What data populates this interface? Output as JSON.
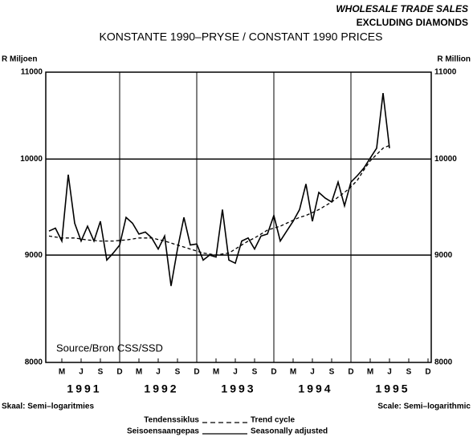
{
  "chart_data": {
    "type": "line",
    "title": "WHOLESALE TRADE SALES",
    "subtitle": "EXCLUDING DIAMONDS",
    "subtitle2": "KONSTANTE 1990–PRYSE / CONSTANT 1990 PRICES",
    "y_label_left": "R Miljoen",
    "y_label_right": "R Million",
    "source": "Source/Bron  CSS/SSD",
    "scale_note_af": "Skaal: Semi–logaritmies",
    "scale_note_en": "Scale: Semi–logarithmic",
    "log_scale": true,
    "ylim": [
      8000,
      11000
    ],
    "yticks": [
      8000,
      9000,
      10000,
      11000
    ],
    "grid": true,
    "categories": [
      null,
      null,
      "M",
      null,
      null,
      "J",
      null,
      null,
      "S",
      null,
      null,
      "D",
      null,
      null,
      "M",
      null,
      null,
      "J",
      null,
      null,
      "S",
      null,
      null,
      "D",
      null,
      null,
      "M",
      null,
      null,
      "J",
      null,
      null,
      "S",
      null,
      null,
      "D",
      null,
      null,
      "M",
      null,
      null,
      "J",
      null,
      null,
      "S",
      null,
      null,
      "D",
      null,
      null,
      "M",
      null,
      null,
      "J",
      null,
      null,
      "S",
      null,
      null,
      "D"
    ],
    "years": [
      "1991",
      "1992",
      "1993",
      "1994",
      "1995"
    ],
    "series": [
      {
        "name": "Seasonally adjusted",
        "name_af": "Seisoensaangepas",
        "color": "#000000",
        "dash": false,
        "values": [
          9240,
          9270,
          9140,
          9830,
          9320,
          9140,
          9290,
          9140,
          9340,
          8950,
          9020,
          9100,
          9380,
          9320,
          9210,
          9230,
          9170,
          9060,
          9190,
          8700,
          9060,
          9380,
          9100,
          9110,
          8950,
          9000,
          8980,
          9460,
          8950,
          8920,
          9140,
          9170,
          9060,
          9190,
          9210,
          9400,
          9140,
          9240,
          9340,
          9460,
          9730,
          9340,
          9640,
          9580,
          9540,
          9750,
          9500,
          9750,
          9820,
          9900,
          10010,
          10120,
          10750,
          10120,
          null,
          null,
          null,
          null,
          null,
          null
        ]
      },
      {
        "name": "Trend cycle",
        "name_af": "Tendenssiklus",
        "color": "#000000",
        "dash": true,
        "values": [
          9190,
          9180,
          9170,
          9170,
          9170,
          9160,
          9150,
          9145,
          9140,
          9140,
          9140,
          9145,
          9150,
          9160,
          9170,
          9170,
          9170,
          9155,
          9140,
          9120,
          9100,
          9080,
          9060,
          9040,
          9020,
          9010,
          9000,
          9010,
          9020,
          9060,
          9100,
          9140,
          9170,
          9210,
          9250,
          9270,
          9290,
          9320,
          9350,
          9380,
          9400,
          9430,
          9460,
          9500,
          9540,
          9590,
          9640,
          9700,
          9770,
          9880,
          9980,
          10050,
          10120,
          10150,
          null,
          null,
          null,
          null,
          null,
          null
        ]
      }
    ]
  }
}
